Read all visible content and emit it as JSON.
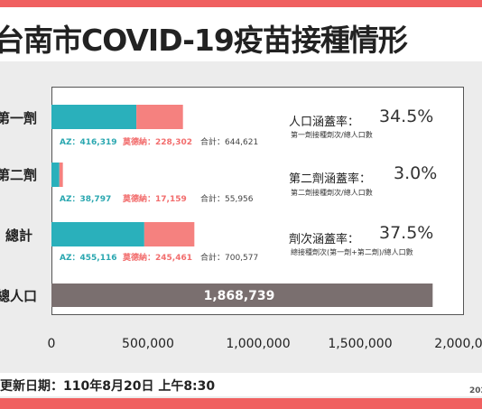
{
  "header": {
    "title": "台南市COVID-19疫苗接種情形"
  },
  "footer": {
    "update": "更新日期：110年8月20日 上午8:30",
    "year": "202"
  },
  "chart_data": {
    "type": "bar",
    "orientation": "horizontal",
    "stacked": true,
    "categories": [
      "第一劑",
      "第二劑",
      "總計",
      "總人口"
    ],
    "series": [
      {
        "name": "AZ",
        "color": "#2ab0bb",
        "values": [
          416319,
          38797,
          455116,
          null
        ]
      },
      {
        "name": "莫德納",
        "color": "#f5817f",
        "values": [
          228302,
          17159,
          245461,
          null
        ]
      },
      {
        "name": "總人口",
        "color": "#7a6f6f",
        "values": [
          null,
          null,
          null,
          1868739
        ]
      }
    ],
    "xlim": [
      0,
      2000000
    ],
    "xticks": [
      "0",
      "500,000",
      "1,000,000",
      "1,500,000",
      "2,000,0"
    ],
    "rows": [
      {
        "label": "第一劑",
        "az_text": "AZ：416,319",
        "mod_text": "莫德納：228,302",
        "total_text": "合計：644,621"
      },
      {
        "label": "第二劑",
        "az_text": "AZ：38,797",
        "mod_text": "莫德納：17,159",
        "total_text": "合計：55,956"
      },
      {
        "label": "總計",
        "az_text": "AZ：455,116",
        "mod_text": "莫德納：245,461",
        "total_text": "合計：700,577"
      },
      {
        "label": "總人口",
        "value_label": "1,868,739"
      }
    ],
    "coverage": [
      {
        "title": "人口涵蓋率：",
        "value": "34.5%",
        "sub": "第一劑接種劑次/總人口數"
      },
      {
        "title": "第二劑涵蓋率：",
        "value": "3.0%",
        "sub": "第二劑接種劑次/總人口數"
      },
      {
        "title": "劑次涵蓋率：",
        "value": "37.5%",
        "sub": "總接種劑次(第一劑+第二劑)/總人口數"
      }
    ]
  }
}
